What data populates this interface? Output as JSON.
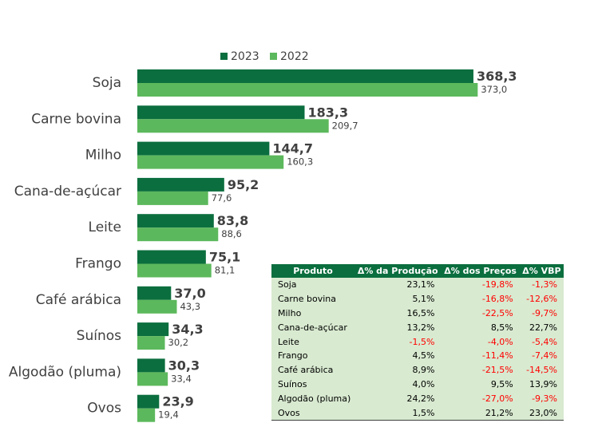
{
  "colors": {
    "series_2023": "#0b6e3e",
    "series_2022": "#5cb85c",
    "negative": "#ff0000",
    "table_header": "#0b6e3e",
    "table_body": "#d8ead0"
  },
  "chart_data": {
    "type": "bar",
    "orientation": "horizontal",
    "legend_position": "top",
    "grid": false,
    "xlim": [
      0,
      380
    ],
    "categories": [
      "Soja",
      "Carne bovina",
      "Milho",
      "Cana-de-açúcar",
      "Leite",
      "Frango",
      "Café arábica",
      "Suínos",
      "Algodão (pluma)",
      "Ovos"
    ],
    "series": [
      {
        "name": "2023",
        "values": [
          368.3,
          183.3,
          144.7,
          95.2,
          83.8,
          75.1,
          37.0,
          34.3,
          30.3,
          23.9
        ]
      },
      {
        "name": "2022",
        "values": [
          373.0,
          209.7,
          160.3,
          77.6,
          88.6,
          81.1,
          43.3,
          30.2,
          33.4,
          19.4
        ]
      }
    ],
    "labels_2023": [
      "368,3",
      "183,3",
      "144,7",
      "95,2",
      "83,8",
      "75,1",
      "37,0",
      "34,3",
      "30,3",
      "23,9"
    ],
    "labels_2022": [
      "373,0",
      "209,7",
      "160,3",
      "77,6",
      "88,6",
      "81,1",
      "43,3",
      "30,2",
      "33,4",
      "19,4"
    ]
  },
  "table": {
    "headers": [
      "Produto",
      "Δ% da Produção",
      "Δ% dos Preços",
      "Δ% VBP"
    ],
    "rows": [
      {
        "produto": "Soja",
        "producao": "23,1%",
        "precos": "-19,8%",
        "vbp": "-1,3%"
      },
      {
        "produto": "Carne bovina",
        "producao": "5,1%",
        "precos": "-16,8%",
        "vbp": "-12,6%"
      },
      {
        "produto": "Milho",
        "producao": "16,5%",
        "precos": "-22,5%",
        "vbp": "-9,7%"
      },
      {
        "produto": "Cana-de-açúcar",
        "producao": "13,2%",
        "precos": "8,5%",
        "vbp": "22,7%"
      },
      {
        "produto": "Leite",
        "producao": "-1,5%",
        "precos": "-4,0%",
        "vbp": "-5,4%"
      },
      {
        "produto": "Frango",
        "producao": "4,5%",
        "precos": "-11,4%",
        "vbp": "-7,4%"
      },
      {
        "produto": "Café arábica",
        "producao": "8,9%",
        "precos": "-21,5%",
        "vbp": "-14,5%"
      },
      {
        "produto": "Suínos",
        "producao": "4,0%",
        "precos": "9,5%",
        "vbp": "13,9%"
      },
      {
        "produto": "Algodão (pluma)",
        "producao": "24,2%",
        "precos": "-27,0%",
        "vbp": "-9,3%"
      },
      {
        "produto": "Ovos",
        "producao": "1,5%",
        "precos": "21,2%",
        "vbp": "23,0%"
      }
    ]
  }
}
